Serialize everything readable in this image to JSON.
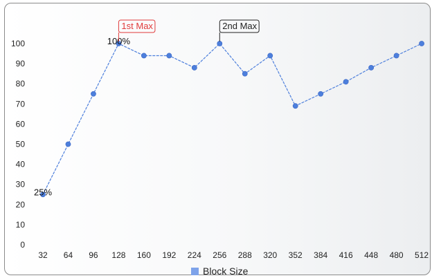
{
  "chart_data": {
    "type": "line",
    "categories": [
      "32",
      "64",
      "96",
      "128",
      "160",
      "192",
      "224",
      "256",
      "288",
      "320",
      "352",
      "384",
      "416",
      "448",
      "480",
      "512"
    ],
    "series": [
      {
        "name": "Block Size",
        "values": [
          25,
          50,
          75,
          100,
          94,
          94,
          88,
          100,
          85,
          94,
          69,
          75,
          81,
          88,
          94,
          100
        ],
        "color": "#4d7fdc"
      }
    ],
    "yticks": [
      "0",
      "10",
      "20",
      "30",
      "40",
      "50",
      "60",
      "70",
      "80",
      "90",
      "100"
    ],
    "ylim": [
      0,
      100
    ],
    "grid": false,
    "legend": "bottom",
    "data_labels": [
      {
        "category": "32",
        "text": "25%"
      },
      {
        "category": "128",
        "text": "100%"
      }
    ],
    "annotations": [
      {
        "category": "128",
        "text": "1st Max",
        "color": "#e03a3a"
      },
      {
        "category": "256",
        "text": "2nd Max",
        "color": "#222222"
      }
    ]
  }
}
